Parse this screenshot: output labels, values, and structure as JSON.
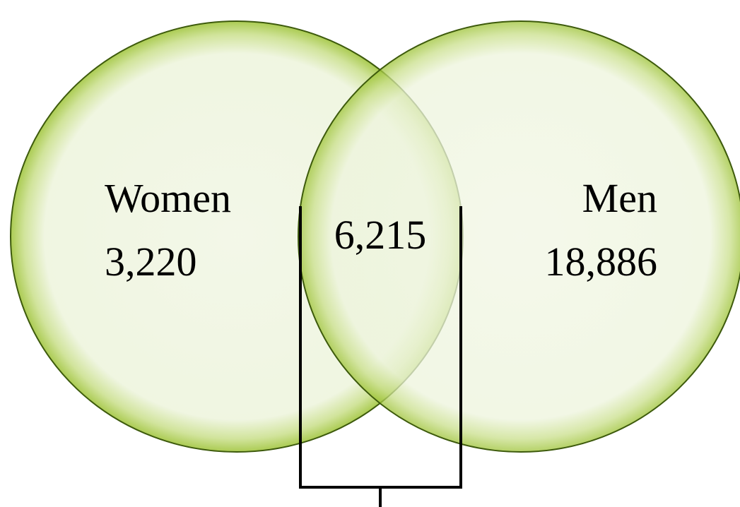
{
  "sets": [
    {
      "label": "Women",
      "value": "3,220"
    },
    {
      "label": "Men",
      "value": "18,886"
    }
  ],
  "intersection": {
    "value": "6,215"
  }
}
